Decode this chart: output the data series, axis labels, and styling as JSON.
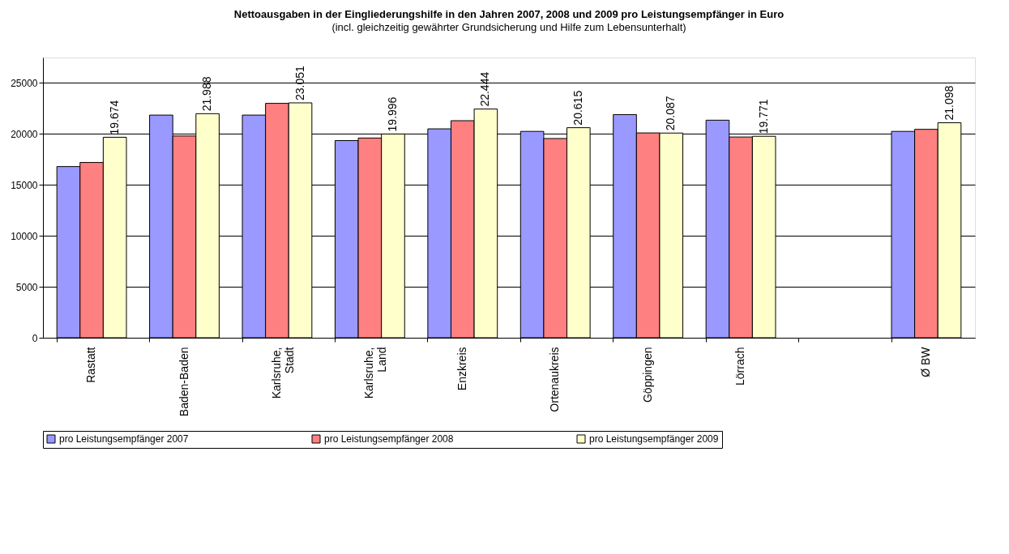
{
  "chart_data": {
    "type": "bar",
    "title": "Nettoausgaben in der Eingliederungshilfe in den Jahren 2007, 2008 und 2009 pro Leistungsempfänger in Euro",
    "subtitle": "(incl. gleichzeitig gewährter Grundsicherung und Hilfe zum Lebensunterhalt)",
    "categories": [
      "Rastatt",
      "Baden-Baden",
      "Karlsruhe,\nStadt",
      "Karlsruhe,\nLand",
      "Enzkreis",
      "Ortenaukreis",
      "Göppingen",
      "Lörrach",
      null,
      "Ø BW"
    ],
    "series": [
      {
        "name": "pro Leistungsempfänger 2007",
        "color": "#9999ff",
        "values": [
          16800,
          21850,
          21850,
          19350,
          20500,
          20250,
          21900,
          21350,
          null,
          20250
        ]
      },
      {
        "name": "pro Leistungsempfänger 2008",
        "color": "#ff8080",
        "values": [
          17200,
          19800,
          23000,
          19600,
          21300,
          19550,
          20100,
          19700,
          null,
          20450
        ]
      },
      {
        "name": "pro Leistungsempfänger 2009",
        "color": "#ffffcc",
        "values": [
          19674,
          21988,
          23051,
          19996,
          22444,
          20615,
          20087,
          19771,
          null,
          21098
        ],
        "value_labels": [
          "19.674",
          "21.988",
          "23.051",
          "19.996",
          "22.444",
          "20.615",
          "20.087",
          "19.771",
          null,
          "21.098"
        ]
      }
    ],
    "ylim": [
      0,
      27500
    ],
    "yticks": [
      0,
      5000,
      10000,
      15000,
      20000,
      25000
    ],
    "grid": "y",
    "legend": "bottom"
  }
}
